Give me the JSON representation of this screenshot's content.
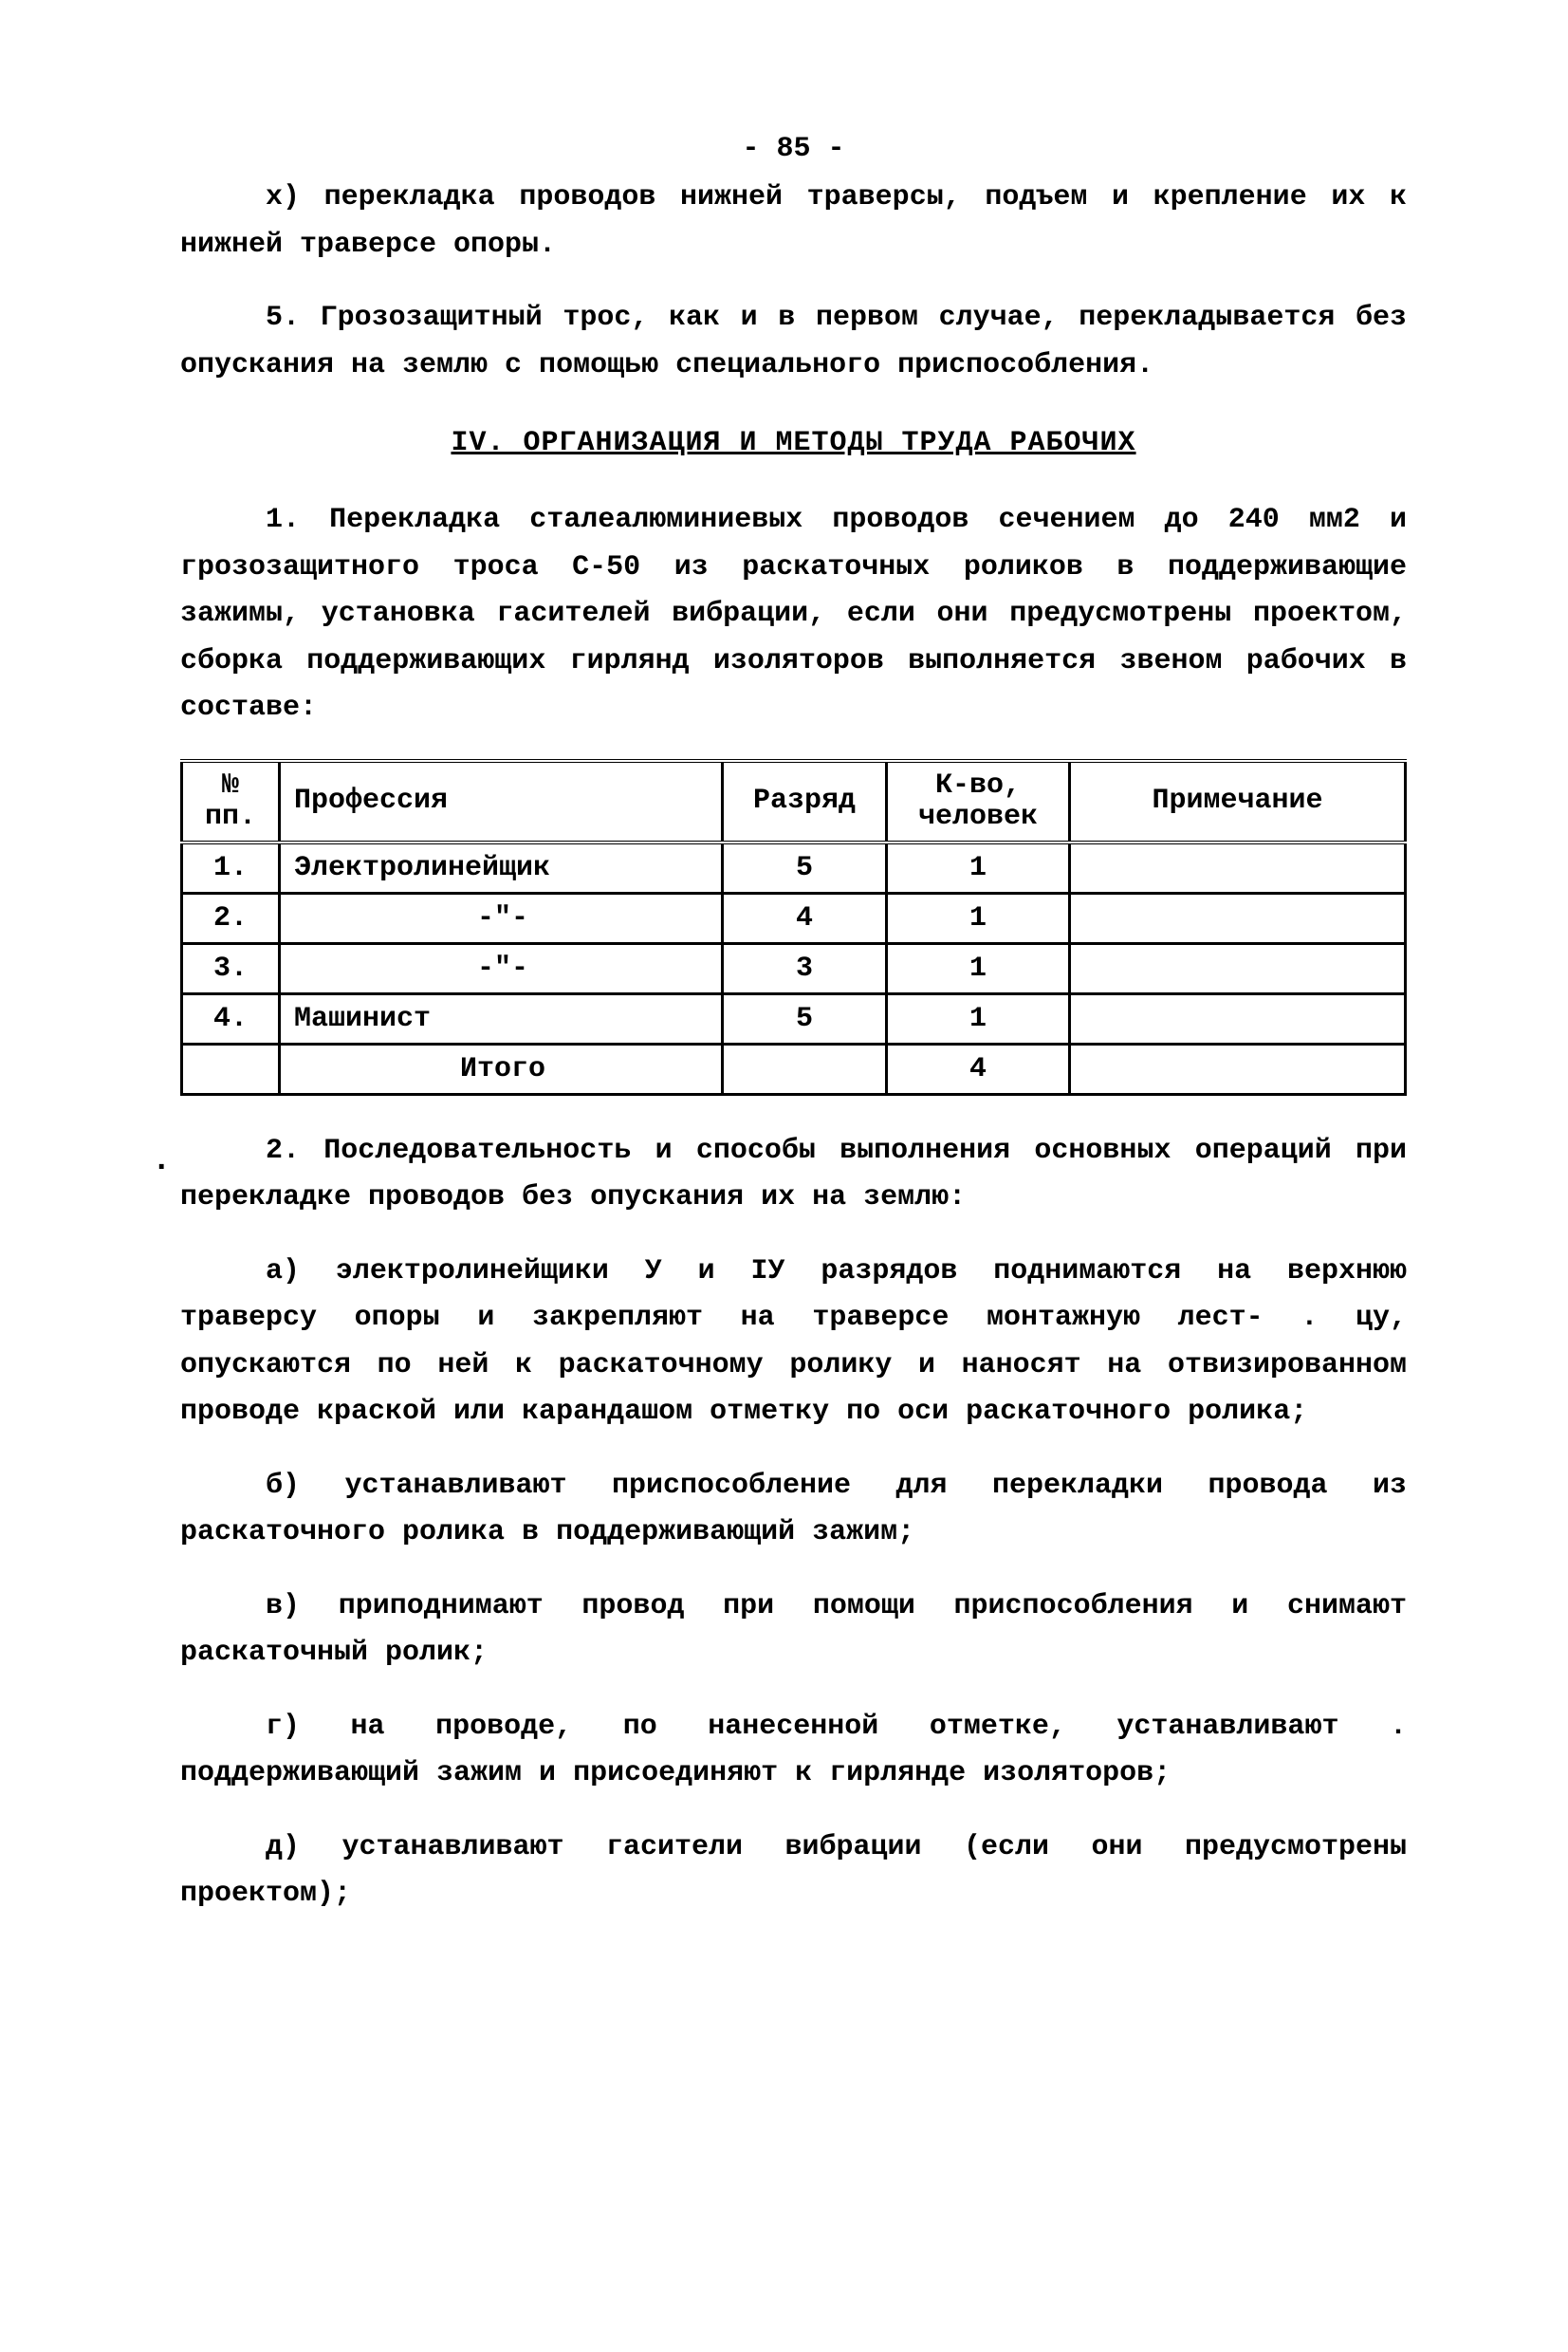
{
  "page_number": "- 85 -",
  "para_x": "х) перекладка проводов нижней траверсы, подъем и крепление их к нижней траверсе опоры.",
  "para_5": "5. Грозозащитный трос, как и в первом случае, перекладывается без опускания на землю с помощью специального приспособления.",
  "section_iv_title": "IV. ОРГАНИЗАЦИЯ И МЕТОДЫ ТРУДА РАБОЧИХ",
  "para_iv_1": "1. Перекладка сталеалюминиевых проводов сечением до 240 мм2 и грозозащитного троса С-50 из раскаточных роликов в поддерживающие зажимы, установка гасителей вибрации, если они предусмотрены проектом, сборка поддерживающих гирлянд изоляторов  выполняется звеном рабочих в составе:",
  "table": {
    "headers": {
      "num": "№\nпп.",
      "prof": "Профессия",
      "grade": "Разряд",
      "count": "К-во,\nчеловек",
      "note": "Примечание"
    },
    "rows": [
      {
        "num": "1.",
        "prof": "Электролинейщик",
        "grade": "5",
        "count": "1",
        "note": ""
      },
      {
        "num": "2.",
        "prof": "-\"-",
        "grade": "4",
        "count": "1",
        "note": ""
      },
      {
        "num": "3.",
        "prof": "-\"-",
        "grade": "3",
        "count": "1",
        "note": ""
      },
      {
        "num": "4.",
        "prof": "Машинист",
        "grade": "5",
        "count": "1",
        "note": ""
      }
    ],
    "total": {
      "label": "Итого",
      "count": "4"
    }
  },
  "para_iv_2": "2. Последовательность и способы выполнения основных операций при перекладке проводов без опускания их на землю:",
  "item_a": "а) электролинейщики У и IУ разрядов поднимаются на верхнюю траверсу опоры и закрепляют на траверсе монтажную лест- . цу, опускаются по ней к раскаточному ролику и наносят на отвизированном проводе краской или карандашом отметку по оси раскаточного ролика;",
  "item_b": "б) устанавливают приспособление для перекладки провода из раскаточного ролика в поддерживающий зажим;",
  "item_v": "в) приподнимают провод при помощи приспособления и снимают раскаточный ролик;",
  "item_g": "г) на проводе, по нанесенной отметке, устанавливают  . поддерживающий зажим и присоединяют к гирлянде изоляторов;",
  "item_d": "д) устанавливают гасители вибрации (если они предусмотрены проектом);"
}
